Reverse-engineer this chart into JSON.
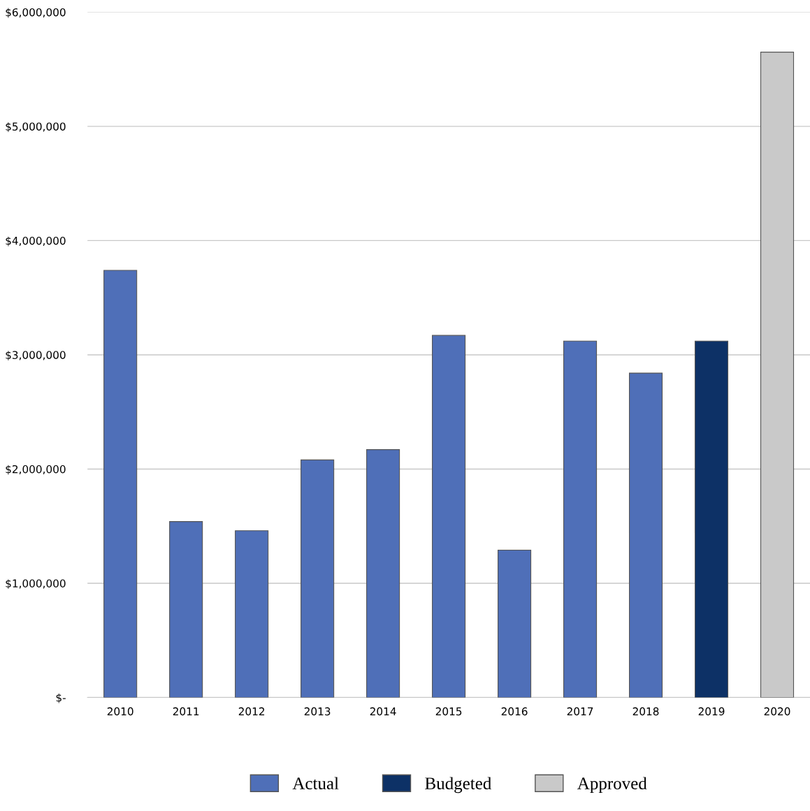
{
  "chart_data": {
    "type": "bar",
    "categories": [
      "2010",
      "2011",
      "2012",
      "2013",
      "2014",
      "2015",
      "2016",
      "2017",
      "2018",
      "2019",
      "2020"
    ],
    "series": [
      {
        "name": "Actual",
        "color": "#4f6fb8",
        "values": [
          3740000,
          1540000,
          1460000,
          2080000,
          2170000,
          3170000,
          1290000,
          3120000,
          2840000,
          null,
          null
        ]
      },
      {
        "name": "Budgeted",
        "color": "#0d3166",
        "values": [
          null,
          null,
          null,
          null,
          null,
          null,
          null,
          null,
          null,
          3120000,
          null
        ]
      },
      {
        "name": "Approved",
        "color": "#c9c9c9",
        "values": [
          null,
          null,
          null,
          null,
          null,
          null,
          null,
          null,
          null,
          null,
          5650000
        ]
      }
    ],
    "ylim": [
      0,
      6000000
    ],
    "yticks": [
      {
        "value": 0,
        "label": "$-"
      },
      {
        "value": 1000000,
        "label": "$1,000,000"
      },
      {
        "value": 2000000,
        "label": "$2,000,000"
      },
      {
        "value": 3000000,
        "label": "$3,000,000"
      },
      {
        "value": 4000000,
        "label": "$4,000,000"
      },
      {
        "value": 5000000,
        "label": "$5,000,000"
      },
      {
        "value": 6000000,
        "label": "$6,000,000"
      }
    ],
    "grid": "y",
    "legend": "bottom"
  }
}
